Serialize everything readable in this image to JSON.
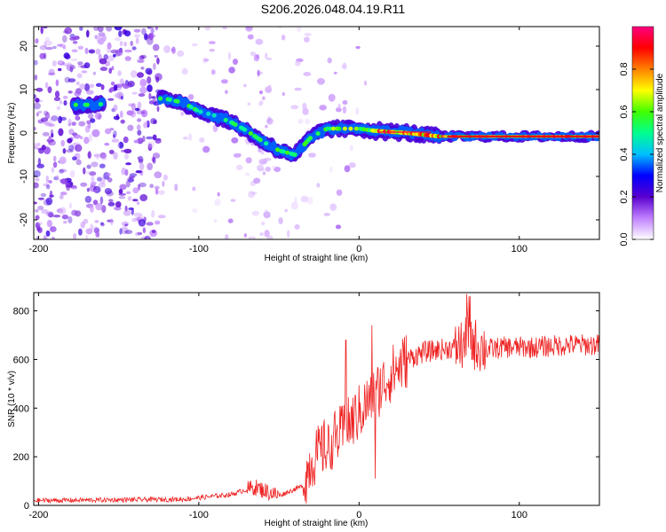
{
  "chart_data": [
    {
      "type": "heatmap",
      "title": "S206.2026.048.04.19.R11",
      "xlabel": "Height of straight line (km)",
      "ylabel": "Frequency (Hz)",
      "xlim": [
        -203,
        150
      ],
      "ylim": [
        -24.5,
        24.5
      ],
      "xticks": [
        -200,
        -100,
        0,
        100
      ],
      "yticks": [
        -20,
        -10,
        0,
        10,
        20
      ],
      "colorbar": {
        "label": "Normalized spectral amplitude",
        "range": [
          0,
          1
        ],
        "ticks": [
          "0.0",
          "0.2",
          "0.4",
          "0.6",
          "0.8"
        ],
        "stops": [
          "#ffffff",
          "#c080ff",
          "#5a00d0",
          "#0000ff",
          "#00c0ff",
          "#00ff90",
          "#40ff00",
          "#ffff00",
          "#ff8000",
          "#ff0000",
          "#ff0080"
        ]
      },
      "ridge": [
        {
          "x": -175,
          "y": 6.5
        },
        {
          "x": -165,
          "y": 6.5
        },
        {
          "x": -122,
          "y": 8
        },
        {
          "x": -110,
          "y": 7
        },
        {
          "x": -100,
          "y": 5
        },
        {
          "x": -90,
          "y": 4
        },
        {
          "x": -80,
          "y": 2.5
        },
        {
          "x": -70,
          "y": 0.5
        },
        {
          "x": -60,
          "y": -2
        },
        {
          "x": -50,
          "y": -4
        },
        {
          "x": -40,
          "y": -5
        },
        {
          "x": -30,
          "y": -1
        },
        {
          "x": -20,
          "y": 1
        },
        {
          "x": -10,
          "y": 1
        },
        {
          "x": 0,
          "y": 1
        },
        {
          "x": 10,
          "y": 0.5
        },
        {
          "x": 30,
          "y": 0
        },
        {
          "x": 50,
          "y": -0.8
        },
        {
          "x": 100,
          "y": -0.8
        },
        {
          "x": 150,
          "y": -0.8
        }
      ]
    },
    {
      "type": "line",
      "xlabel": "Height of straight line (km)",
      "ylabel": "SNR (10 * v/v)",
      "xlim": [
        -203,
        150
      ],
      "ylim": [
        0,
        875
      ],
      "xticks": [
        -200,
        -100,
        0,
        100
      ],
      "yticks": [
        0,
        200,
        400,
        600,
        800
      ],
      "line_color": "#ee2222",
      "trend": [
        {
          "x": -203,
          "y": 20
        },
        {
          "x": -110,
          "y": 25
        },
        {
          "x": -80,
          "y": 45
        },
        {
          "x": -65,
          "y": 75
        },
        {
          "x": -50,
          "y": 40
        },
        {
          "x": -35,
          "y": 80
        },
        {
          "x": -30,
          "y": 180
        },
        {
          "x": -20,
          "y": 250
        },
        {
          "x": -10,
          "y": 300
        },
        {
          "x": 0,
          "y": 380
        },
        {
          "x": 10,
          "y": 460
        },
        {
          "x": 20,
          "y": 540
        },
        {
          "x": 30,
          "y": 600
        },
        {
          "x": 40,
          "y": 630
        },
        {
          "x": 60,
          "y": 650
        },
        {
          "x": 70,
          "y": 670
        },
        {
          "x": 80,
          "y": 640
        },
        {
          "x": 90,
          "y": 650
        },
        {
          "x": 110,
          "y": 650
        },
        {
          "x": 130,
          "y": 660
        },
        {
          "x": 150,
          "y": 660
        }
      ]
    }
  ]
}
